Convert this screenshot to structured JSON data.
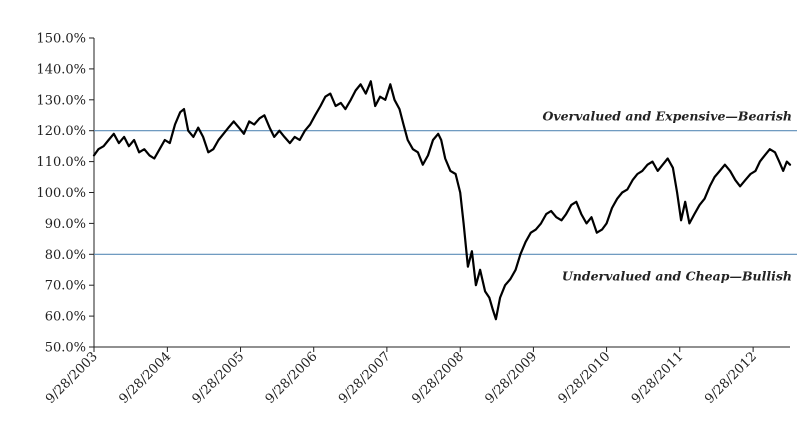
{
  "chart_data": {
    "type": "line",
    "title": "",
    "xlabel": "",
    "ylabel": "",
    "ylim": [
      0.5,
      1.5
    ],
    "xlim": [
      "2003-09-28",
      "2013-03-31"
    ],
    "grid": false,
    "legend": "none",
    "y_ticks": [
      {
        "value": 1.5,
        "label": "150.0%"
      },
      {
        "value": 1.4,
        "label": "140.0%"
      },
      {
        "value": 1.3,
        "label": "130.0%"
      },
      {
        "value": 1.2,
        "label": "120.0%"
      },
      {
        "value": 1.1,
        "label": "110.0%"
      },
      {
        "value": 1.0,
        "label": "100.0%"
      },
      {
        "value": 0.9,
        "label": "90.0%"
      },
      {
        "value": 0.8,
        "label": "80.0%"
      },
      {
        "value": 0.7,
        "label": "70.0%"
      },
      {
        "value": 0.6,
        "label": "60.0%"
      },
      {
        "value": 0.5,
        "label": "50.0%"
      }
    ],
    "x_ticks": [
      {
        "value": "2003-09-28",
        "label": "9/28/2003"
      },
      {
        "value": "2004-09-28",
        "label": "9/28/2004"
      },
      {
        "value": "2005-09-28",
        "label": "9/28/2005"
      },
      {
        "value": "2006-09-28",
        "label": "9/28/2006"
      },
      {
        "value": "2007-09-28",
        "label": "9/28/2007"
      },
      {
        "value": "2008-09-28",
        "label": "9/28/2008"
      },
      {
        "value": "2009-09-28",
        "label": "9/28/2009"
      },
      {
        "value": "2010-09-28",
        "label": "9/28/2010"
      },
      {
        "value": "2011-09-28",
        "label": "9/28/2011"
      },
      {
        "value": "2012-09-28",
        "label": "9/28/2012"
      }
    ],
    "reference_lines": [
      {
        "y": 1.2,
        "label": "Overvalued and Expensive—Bearish",
        "color": "#5b8db8"
      },
      {
        "y": 0.8,
        "label": "Undervalued and Cheap—Bullish",
        "color": "#5b8db8"
      }
    ],
    "series": [
      {
        "color": "#000000",
        "points": [
          [
            "2003-09-28",
            1.12
          ],
          [
            "2003-10-20",
            1.14
          ],
          [
            "2003-11-15",
            1.15
          ],
          [
            "2003-12-10",
            1.17
          ],
          [
            "2004-01-05",
            1.19
          ],
          [
            "2004-01-30",
            1.16
          ],
          [
            "2004-02-25",
            1.18
          ],
          [
            "2004-03-20",
            1.15
          ],
          [
            "2004-04-15",
            1.17
          ],
          [
            "2004-05-10",
            1.13
          ],
          [
            "2004-06-05",
            1.14
          ],
          [
            "2004-07-01",
            1.12
          ],
          [
            "2004-07-25",
            1.11
          ],
          [
            "2004-08-20",
            1.14
          ],
          [
            "2004-09-15",
            1.17
          ],
          [
            "2004-10-10",
            1.16
          ],
          [
            "2004-11-05",
            1.22
          ],
          [
            "2004-12-01",
            1.26
          ],
          [
            "2004-12-20",
            1.27
          ],
          [
            "2005-01-10",
            1.2
          ],
          [
            "2005-02-05",
            1.18
          ],
          [
            "2005-03-01",
            1.21
          ],
          [
            "2005-03-25",
            1.18
          ],
          [
            "2005-04-20",
            1.13
          ],
          [
            "2005-05-15",
            1.14
          ],
          [
            "2005-06-10",
            1.17
          ],
          [
            "2005-07-05",
            1.19
          ],
          [
            "2005-07-30",
            1.21
          ],
          [
            "2005-08-25",
            1.23
          ],
          [
            "2005-09-20",
            1.21
          ],
          [
            "2005-10-15",
            1.19
          ],
          [
            "2005-11-10",
            1.23
          ],
          [
            "2005-12-05",
            1.22
          ],
          [
            "2006-01-01",
            1.24
          ],
          [
            "2006-01-25",
            1.25
          ],
          [
            "2006-02-20",
            1.21
          ],
          [
            "2006-03-15",
            1.18
          ],
          [
            "2006-04-10",
            1.2
          ],
          [
            "2006-05-05",
            1.18
          ],
          [
            "2006-06-01",
            1.16
          ],
          [
            "2006-06-25",
            1.18
          ],
          [
            "2006-07-20",
            1.17
          ],
          [
            "2006-08-15",
            1.2
          ],
          [
            "2006-09-10",
            1.22
          ],
          [
            "2006-10-05",
            1.25
          ],
          [
            "2006-11-01",
            1.28
          ],
          [
            "2006-11-25",
            1.31
          ],
          [
            "2006-12-20",
            1.32
          ],
          [
            "2007-01-15",
            1.28
          ],
          [
            "2007-02-10",
            1.29
          ],
          [
            "2007-03-05",
            1.27
          ],
          [
            "2007-04-01",
            1.3
          ],
          [
            "2007-04-25",
            1.33
          ],
          [
            "2007-05-20",
            1.35
          ],
          [
            "2007-06-15",
            1.32
          ],
          [
            "2007-07-10",
            1.36
          ],
          [
            "2007-08-01",
            1.28
          ],
          [
            "2007-08-25",
            1.31
          ],
          [
            "2007-09-20",
            1.3
          ],
          [
            "2007-10-15",
            1.35
          ],
          [
            "2007-11-05",
            1.3
          ],
          [
            "2007-11-30",
            1.27
          ],
          [
            "2007-12-20",
            1.22
          ],
          [
            "2008-01-10",
            1.17
          ],
          [
            "2008-02-05",
            1.14
          ],
          [
            "2008-03-01",
            1.13
          ],
          [
            "2008-03-25",
            1.09
          ],
          [
            "2008-04-20",
            1.12
          ],
          [
            "2008-05-15",
            1.17
          ],
          [
            "2008-06-10",
            1.19
          ],
          [
            "2008-06-25",
            1.17
          ],
          [
            "2008-07-15",
            1.11
          ],
          [
            "2008-08-10",
            1.07
          ],
          [
            "2008-09-05",
            1.06
          ],
          [
            "2008-09-28",
            1.0
          ],
          [
            "2008-10-15",
            0.9
          ],
          [
            "2008-11-05",
            0.76
          ],
          [
            "2008-11-25",
            0.81
          ],
          [
            "2008-12-15",
            0.7
          ],
          [
            "2009-01-05",
            0.75
          ],
          [
            "2009-01-30",
            0.68
          ],
          [
            "2009-02-20",
            0.66
          ],
          [
            "2009-03-10",
            0.62
          ],
          [
            "2009-03-25",
            0.59
          ],
          [
            "2009-04-15",
            0.66
          ],
          [
            "2009-05-10",
            0.7
          ],
          [
            "2009-06-05",
            0.72
          ],
          [
            "2009-07-01",
            0.75
          ],
          [
            "2009-07-25",
            0.8
          ],
          [
            "2009-08-20",
            0.84
          ],
          [
            "2009-09-15",
            0.87
          ],
          [
            "2009-10-10",
            0.88
          ],
          [
            "2009-11-05",
            0.9
          ],
          [
            "2009-12-01",
            0.93
          ],
          [
            "2009-12-25",
            0.94
          ],
          [
            "2010-01-20",
            0.92
          ],
          [
            "2010-02-15",
            0.91
          ],
          [
            "2010-03-10",
            0.93
          ],
          [
            "2010-04-05",
            0.96
          ],
          [
            "2010-04-30",
            0.97
          ],
          [
            "2010-05-25",
            0.93
          ],
          [
            "2010-06-20",
            0.9
          ],
          [
            "2010-07-15",
            0.92
          ],
          [
            "2010-08-10",
            0.87
          ],
          [
            "2010-09-05",
            0.88
          ],
          [
            "2010-09-28",
            0.9
          ],
          [
            "2010-10-25",
            0.95
          ],
          [
            "2010-11-20",
            0.98
          ],
          [
            "2010-12-15",
            1.0
          ],
          [
            "2011-01-10",
            1.01
          ],
          [
            "2011-02-05",
            1.04
          ],
          [
            "2011-03-01",
            1.06
          ],
          [
            "2011-03-25",
            1.07
          ],
          [
            "2011-04-20",
            1.09
          ],
          [
            "2011-05-15",
            1.1
          ],
          [
            "2011-06-10",
            1.07
          ],
          [
            "2011-07-05",
            1.09
          ],
          [
            "2011-07-30",
            1.11
          ],
          [
            "2011-08-25",
            1.08
          ],
          [
            "2011-09-15",
            1.0
          ],
          [
            "2011-10-05",
            0.91
          ],
          [
            "2011-10-25",
            0.97
          ],
          [
            "2011-11-15",
            0.9
          ],
          [
            "2011-12-10",
            0.93
          ],
          [
            "2012-01-05",
            0.96
          ],
          [
            "2012-01-30",
            0.98
          ],
          [
            "2012-02-25",
            1.02
          ],
          [
            "2012-03-20",
            1.05
          ],
          [
            "2012-04-15",
            1.07
          ],
          [
            "2012-05-10",
            1.09
          ],
          [
            "2012-06-05",
            1.07
          ],
          [
            "2012-07-01",
            1.04
          ],
          [
            "2012-07-25",
            1.02
          ],
          [
            "2012-08-20",
            1.04
          ],
          [
            "2012-09-15",
            1.06
          ],
          [
            "2012-10-10",
            1.07
          ],
          [
            "2012-11-01",
            1.1
          ],
          [
            "2012-11-25",
            1.12
          ],
          [
            "2012-12-20",
            1.14
          ],
          [
            "2013-01-15",
            1.13
          ],
          [
            "2013-02-05",
            1.1
          ],
          [
            "2013-02-25",
            1.07
          ],
          [
            "2013-03-15",
            1.1
          ],
          [
            "2013-03-31",
            1.09
          ]
        ]
      }
    ]
  }
}
